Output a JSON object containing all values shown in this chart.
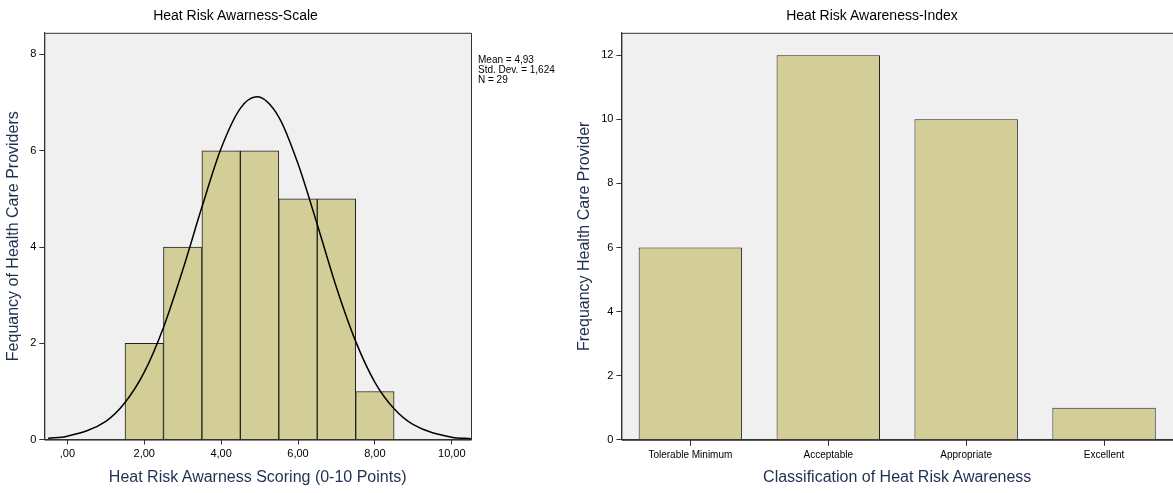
{
  "chart_data": [
    {
      "type": "histogram",
      "title": "Heat Risk Awarness-Scale",
      "xlabel": "Heat Risk Awarness Scoring (0-10 Points)",
      "ylabel": "Fequancy of Health Care Providers",
      "bins": [
        1.5,
        2.5,
        3.5,
        4.5,
        5.5,
        6.5,
        7.5,
        8.5
      ],
      "values": [
        2,
        4,
        6,
        6,
        5,
        5,
        1
      ],
      "color": "#d3cd97",
      "series": [
        {
          "type": "line",
          "color": "#000000",
          "x": [
            -0.5,
            0,
            1,
            1.5,
            2,
            2.5,
            3,
            3.5,
            4,
            4.5,
            4.93,
            5.5,
            6,
            6.5,
            7,
            7.5,
            8,
            8.5,
            9,
            10,
            10.5
          ],
          "values": [
            0.03,
            0.07,
            0.38,
            0.77,
            1.4,
            2.33,
            3.52,
            4.83,
            6.05,
            6.88,
            7.12,
            6.7,
            5.73,
            4.47,
            3.16,
            2.04,
            1.19,
            0.64,
            0.31,
            0.05,
            0.02
          ]
        }
      ],
      "xlim": [
        -0.6,
        10.5
      ],
      "xticks": [
        {
          "value": 0,
          "label": ",00"
        },
        {
          "value": 2,
          "label": "2,00"
        },
        {
          "value": 4,
          "label": "4,00"
        },
        {
          "value": 6,
          "label": "6,00"
        },
        {
          "value": 8,
          "label": "8,00"
        },
        {
          "value": 10,
          "label": "10,00"
        }
      ],
      "ylim": [
        0,
        8.45
      ],
      "yticks": [
        0,
        2,
        4,
        6,
        8
      ],
      "annotations": [
        "Mean = 4,93",
        "Std. Dev. = 1,624",
        "N = 29"
      ],
      "grid": false,
      "legend": false,
      "marker": "none"
    },
    {
      "type": "bar",
      "title": "Heat Risk Awareness-Index",
      "xlabel": "Classification of Heat Risk Awareness",
      "ylabel": "Frequancy Health Care Provider",
      "categories": [
        "Tolerable Minimum",
        "Acceptable",
        "Appropriate",
        "Excellent"
      ],
      "values": [
        6,
        12,
        10,
        1
      ],
      "color": "#d3cd97",
      "ylim": [
        0,
        12.7
      ],
      "yticks": [
        0,
        2,
        4,
        6,
        8,
        10,
        12
      ],
      "grid": false,
      "legend": false
    }
  ]
}
